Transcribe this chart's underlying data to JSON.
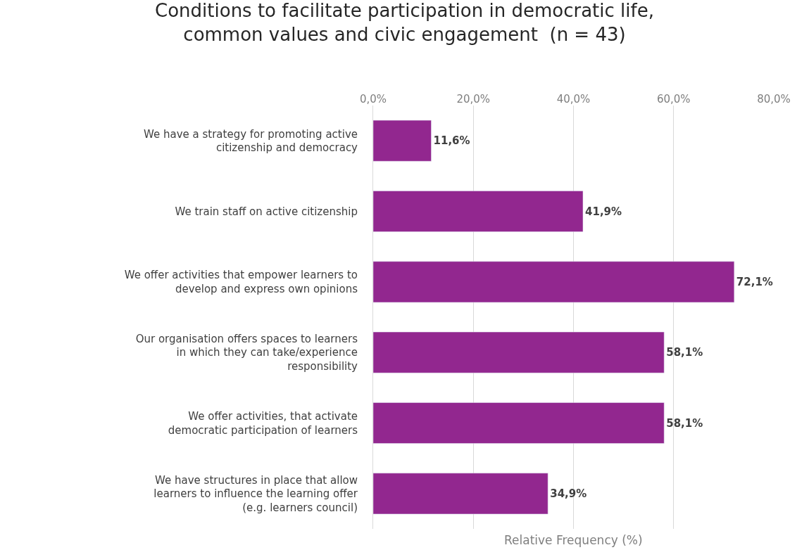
{
  "chart_data": {
    "type": "bar",
    "orientation": "horizontal",
    "title": "Conditions to facilitate participation in democratic life, common values and civic engagement  (n = 43)",
    "xlabel": "Relative Frequency (%)",
    "categories": [
      "We have a strategy for promoting active citizenship and democracy",
      "We train staff on active citizenship",
      "We offer activities that empower learners to develop and express own opinions",
      "Our organisation offers spaces to learners in which they can take/experience responsibility",
      "We offer activities, that activate democratic participation of learners",
      "We have structures in place that allow learners to influence the learning offer (e.g. learners council)"
    ],
    "values": [
      11.6,
      41.9,
      72.1,
      58.1,
      58.1,
      34.9
    ],
    "value_labels": [
      "11,6%",
      "41,9%",
      "72,1%",
      "58,1%",
      "58,1%",
      "34,9%"
    ],
    "color": "#92278f",
    "xlim": [
      0,
      80
    ],
    "xticks": [
      {
        "value": 0,
        "label": "0,0%"
      },
      {
        "value": 20,
        "label": "20,0%"
      },
      {
        "value": 40,
        "label": "40,0%"
      },
      {
        "value": 60,
        "label": "60,0%"
      },
      {
        "value": 80,
        "label": "80,0%"
      }
    ],
    "grid": "x"
  }
}
